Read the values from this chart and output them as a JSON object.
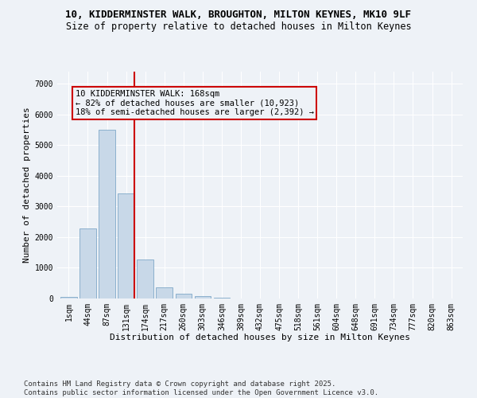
{
  "title_line1": "10, KIDDERMINSTER WALK, BROUGHTON, MILTON KEYNES, MK10 9LF",
  "title_line2": "Size of property relative to detached houses in Milton Keynes",
  "xlabel": "Distribution of detached houses by size in Milton Keynes",
  "ylabel": "Number of detached properties",
  "categories": [
    "1sqm",
    "44sqm",
    "87sqm",
    "131sqm",
    "174sqm",
    "217sqm",
    "260sqm",
    "303sqm",
    "346sqm",
    "389sqm",
    "432sqm",
    "475sqm",
    "518sqm",
    "561sqm",
    "604sqm",
    "648sqm",
    "691sqm",
    "734sqm",
    "777sqm",
    "820sqm",
    "863sqm"
  ],
  "values": [
    60,
    2280,
    5500,
    3420,
    1280,
    370,
    155,
    75,
    30,
    10,
    5,
    2,
    1,
    0,
    0,
    0,
    0,
    0,
    0,
    0,
    0
  ],
  "bar_color": "#c8d8e8",
  "bar_edge_color": "#7fa8c8",
  "vline_color": "#cc0000",
  "vline_x_index": 3.43,
  "annotation_text": "10 KIDDERMINSTER WALK: 168sqm\n← 82% of detached houses are smaller (10,923)\n18% of semi-detached houses are larger (2,392) →",
  "annotation_box_color": "#cc0000",
  "ylim": [
    0,
    7400
  ],
  "yticks": [
    0,
    1000,
    2000,
    3000,
    4000,
    5000,
    6000,
    7000
  ],
  "bg_color": "#eef2f7",
  "grid_color": "#ffffff",
  "footer_text": "Contains HM Land Registry data © Crown copyright and database right 2025.\nContains public sector information licensed under the Open Government Licence v3.0.",
  "title_fontsize": 9,
  "subtitle_fontsize": 8.5,
  "axis_label_fontsize": 8,
  "tick_fontsize": 7,
  "annotation_fontsize": 7.5,
  "footer_fontsize": 6.5
}
